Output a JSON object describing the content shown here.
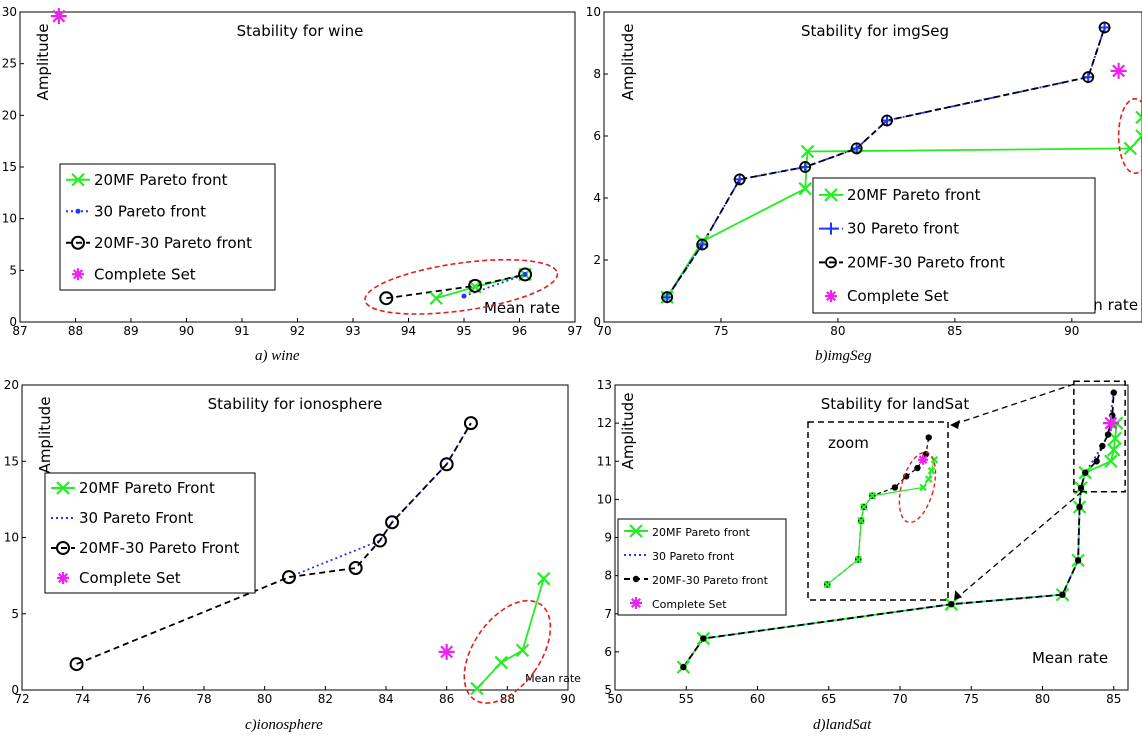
{
  "chart_data": [
    {
      "type": "scatter",
      "title": "Stability for wine",
      "caption": "a) wine",
      "xlabel": "Mean rate",
      "ylabel": "Amplitude",
      "xlim": [
        87,
        97
      ],
      "ylim": [
        0,
        30
      ],
      "xticks": [
        "87",
        "88",
        "89",
        "90",
        "91",
        "92",
        "93",
        "94",
        "95",
        "96",
        "97"
      ],
      "yticks": [
        "0",
        "5",
        "10",
        "15",
        "20",
        "25",
        "30"
      ],
      "legend": "center-left",
      "grid": false,
      "series": [
        {
          "name": "20MF Pareto front",
          "style": "solid",
          "color": "#22ee22",
          "marker": "x",
          "points": [
            [
              94.5,
              2.3
            ],
            [
              95.2,
              3.4
            ],
            [
              96.1,
              4.6
            ]
          ]
        },
        {
          "name": "30 Pareto front",
          "style": "dotted",
          "color": "#2233ff",
          "marker": "dot",
          "points": [
            [
              95.0,
              2.5
            ],
            [
              96.1,
              4.6
            ]
          ]
        },
        {
          "name": "20MF-30 Pareto front",
          "style": "dashed",
          "color": "#000000",
          "marker": "circle",
          "points": [
            [
              93.6,
              2.3
            ],
            [
              95.2,
              3.5
            ],
            [
              96.1,
              4.6
            ]
          ]
        },
        {
          "name": "Complete Set",
          "style": "none",
          "color": "#ee22ee",
          "marker": "star",
          "points": [
            [
              87.7,
              29.6
            ]
          ]
        }
      ],
      "ellipses": [
        {
          "cx": 94.95,
          "cy": 3.4,
          "rx": 1.75,
          "ry": 2.3,
          "angle": -8
        }
      ]
    },
    {
      "type": "scatter",
      "title": "Stability for imgSeg",
      "caption": "b)imgSeg",
      "xlabel": "Mean rate",
      "ylabel": "Amplitude",
      "xlim": [
        70,
        93
      ],
      "ylim": [
        0,
        10
      ],
      "xticks": [
        "70",
        "75",
        "80",
        "85",
        "90"
      ],
      "yticks": [
        "0",
        "2",
        "4",
        "6",
        "8",
        "10"
      ],
      "legend": "center",
      "grid": false,
      "series": [
        {
          "name": "20MF Pareto front",
          "style": "solid",
          "color": "#22ee22",
          "marker": "x",
          "points": [
            [
              72.7,
              0.8
            ],
            [
              74.2,
              2.6
            ],
            [
              78.6,
              4.3
            ],
            [
              78.7,
              5.5
            ],
            [
              92.5,
              5.6
            ],
            [
              93.0,
              6.0
            ],
            [
              93.0,
              6.6
            ]
          ]
        },
        {
          "name": "30 Pareto front",
          "style": "dashdot",
          "color": "#2233ff",
          "marker": "plus",
          "points": [
            [
              72.7,
              0.8
            ],
            [
              74.2,
              2.5
            ],
            [
              75.8,
              4.6
            ],
            [
              78.6,
              5.0
            ],
            [
              80.8,
              5.6
            ],
            [
              82.1,
              6.5
            ],
            [
              90.7,
              7.9
            ],
            [
              91.4,
              9.5
            ]
          ]
        },
        {
          "name": "20MF-30 Pareto front",
          "style": "dashed",
          "color": "#000000",
          "marker": "circle-small",
          "points": [
            [
              72.7,
              0.8
            ],
            [
              74.2,
              2.5
            ],
            [
              75.8,
              4.6
            ],
            [
              78.6,
              5.0
            ],
            [
              80.8,
              5.6
            ],
            [
              82.1,
              6.5
            ],
            [
              90.7,
              7.9
            ],
            [
              91.4,
              9.5
            ]
          ]
        },
        {
          "name": "Complete Set",
          "style": "none",
          "color": "#ee22ee",
          "marker": "star",
          "points": [
            [
              92.0,
              8.1
            ]
          ]
        }
      ],
      "ellipses": [
        {
          "cx": 92.7,
          "cy": 6.0,
          "rx": 0.7,
          "ry": 1.2,
          "angle": 0
        }
      ]
    },
    {
      "type": "scatter",
      "title": "Stability for ionosphere",
      "caption": "c)ionosphere",
      "xlabel": "Mean rate",
      "ylabel": "Amplitude",
      "xlim": [
        72,
        90
      ],
      "ylim": [
        0,
        20
      ],
      "xticks": [
        "72",
        "74",
        "76",
        "78",
        "80",
        "82",
        "84",
        "86",
        "88",
        "90"
      ],
      "yticks": [
        "0",
        "5",
        "10",
        "15",
        "20"
      ],
      "legend": "center-left",
      "grid": false,
      "series": [
        {
          "name": "20MF Pareto Front",
          "style": "solid",
          "color": "#22ee22",
          "marker": "x",
          "points": [
            [
              87.0,
              0.1
            ],
            [
              87.8,
              1.8
            ],
            [
              88.5,
              2.6
            ],
            [
              89.2,
              7.3
            ]
          ]
        },
        {
          "name": "30 Pareto Front",
          "style": "dotted",
          "color": "#2233ff",
          "marker": "none",
          "points": [
            [
              80.8,
              7.4
            ],
            [
              83.8,
              9.8
            ],
            [
              84.2,
              11.0
            ],
            [
              86.0,
              14.8
            ],
            [
              86.8,
              17.5
            ]
          ]
        },
        {
          "name": "20MF-30 Pareto Front",
          "style": "dashed",
          "color": "#000000",
          "marker": "circle",
          "points": [
            [
              73.8,
              1.7
            ],
            [
              80.8,
              7.4
            ],
            [
              83.0,
              8.0
            ],
            [
              83.8,
              9.8
            ],
            [
              84.2,
              11.0
            ],
            [
              86.0,
              14.8
            ],
            [
              86.8,
              17.5
            ]
          ]
        },
        {
          "name": "Complete Set",
          "style": "none",
          "color": "#ee22ee",
          "marker": "star",
          "points": [
            [
              86.0,
              2.5
            ]
          ]
        }
      ],
      "ellipses": [
        {
          "cx": 88.0,
          "cy": 2.5,
          "rx": 1.1,
          "ry": 3.8,
          "angle": 35
        }
      ]
    },
    {
      "type": "scatter",
      "title": "Stability for landSat",
      "caption": "d)landSat",
      "xlabel": "Mean rate",
      "ylabel": "Amplitude",
      "xlim": [
        50,
        86
      ],
      "ylim": [
        5,
        13
      ],
      "xticks": [
        "50",
        "55",
        "60",
        "65",
        "70",
        "75",
        "80",
        "85"
      ],
      "yticks": [
        "5",
        "6",
        "7",
        "8",
        "9",
        "10",
        "11",
        "12",
        "13"
      ],
      "legend": "center-left",
      "grid": false,
      "zoom_label": "zoom",
      "series": [
        {
          "name": "20MF Pareto front",
          "style": "solid",
          "color": "#22ee22",
          "marker": "x",
          "points": [
            [
              54.8,
              5.6
            ],
            [
              56.2,
              6.35
            ],
            [
              73.6,
              7.25
            ],
            [
              81.4,
              7.5
            ],
            [
              82.5,
              8.4
            ],
            [
              82.6,
              9.8
            ],
            [
              82.7,
              10.3
            ],
            [
              83.0,
              10.7
            ],
            [
              84.8,
              11.0
            ],
            [
              85.0,
              11.3
            ],
            [
              85.1,
              11.6
            ],
            [
              85.2,
              12.0
            ]
          ]
        },
        {
          "name": "30 Pareto front",
          "style": "dotted",
          "color": "#2233ff",
          "marker": "none",
          "points": [
            [
              54.8,
              5.6
            ],
            [
              56.2,
              6.35
            ],
            [
              73.6,
              7.25
            ],
            [
              81.4,
              7.5
            ],
            [
              82.5,
              8.4
            ],
            [
              82.6,
              9.8
            ],
            [
              82.7,
              10.3
            ],
            [
              83.0,
              10.7
            ],
            [
              84.2,
              11.4
            ],
            [
              84.6,
              11.7
            ],
            [
              85.0,
              12.8
            ]
          ]
        },
        {
          "name": "20MF-30 Pareto front",
          "style": "dashed",
          "color": "#000000",
          "marker": "dot-black",
          "points": [
            [
              54.8,
              5.6
            ],
            [
              56.2,
              6.35
            ],
            [
              73.6,
              7.25
            ],
            [
              81.4,
              7.5
            ],
            [
              82.5,
              8.4
            ],
            [
              82.6,
              9.8
            ],
            [
              82.7,
              10.3
            ],
            [
              83.0,
              10.7
            ],
            [
              83.8,
              11.0
            ],
            [
              84.2,
              11.4
            ],
            [
              84.6,
              11.7
            ],
            [
              84.9,
              12.2
            ],
            [
              85.0,
              12.8
            ]
          ]
        },
        {
          "name": "Complete Set",
          "style": "none",
          "color": "#ee22ee",
          "marker": "star",
          "points": [
            [
              84.8,
              12.0
            ]
          ]
        }
      ],
      "ellipses": []
    }
  ]
}
